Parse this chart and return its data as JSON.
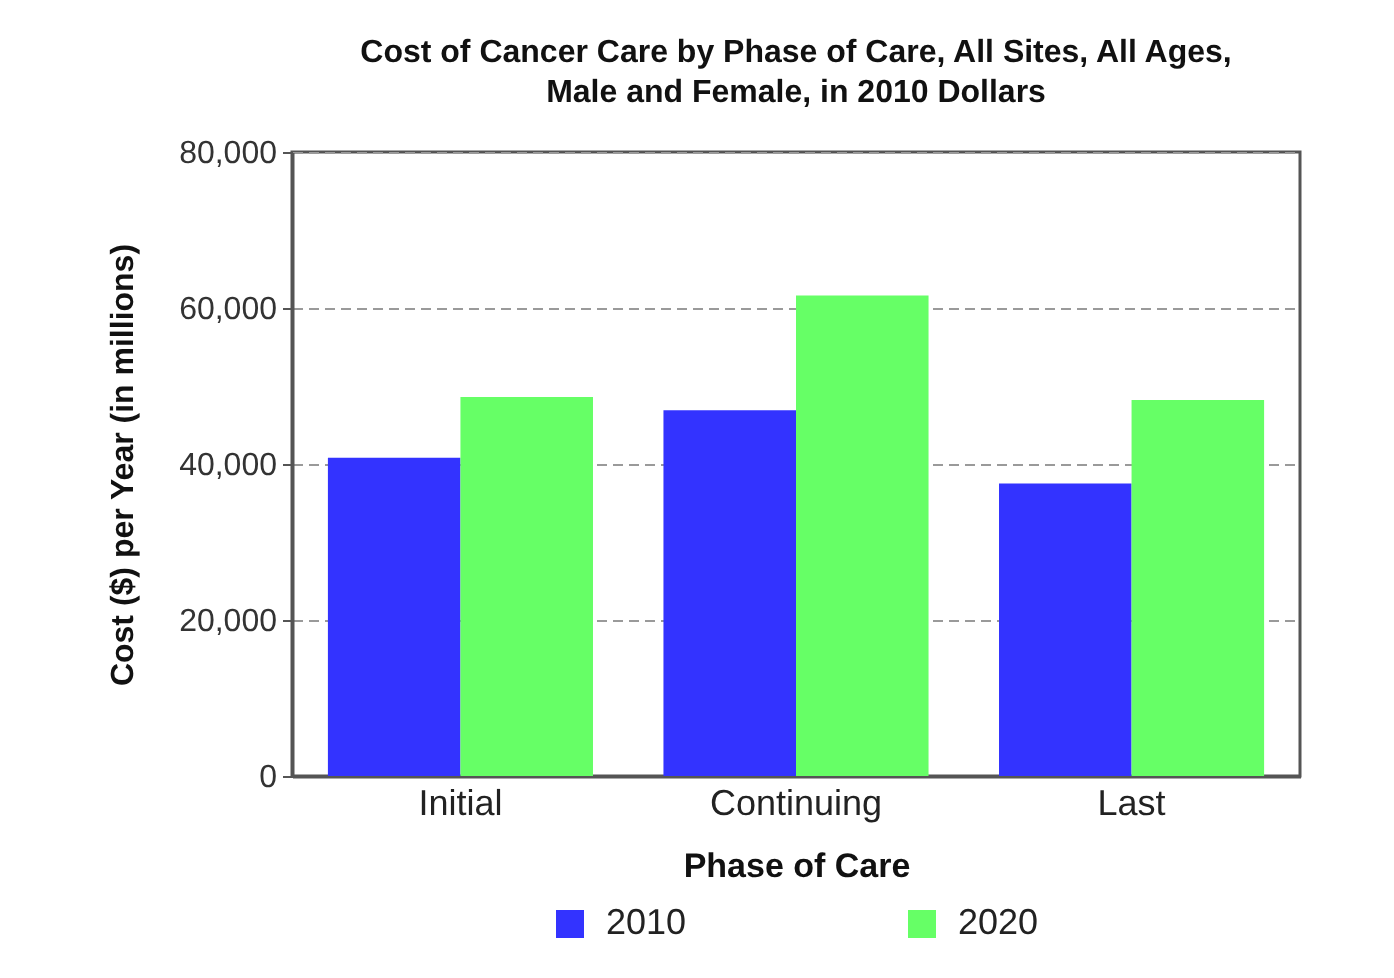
{
  "chart_data": {
    "type": "bar",
    "title": "Cost of Cancer Care by Phase of Care, All Sites, All Ages, Male and Female, in 2010 Dollars",
    "xlabel": "Phase of Care",
    "ylabel": "Cost ($) per Year (in millions)",
    "categories": [
      "Initial",
      "Continuing",
      "Last"
    ],
    "series": [
      {
        "name": "2010",
        "color": "#3333ff",
        "values": [
          40800,
          46900,
          37500
        ]
      },
      {
        "name": "2020",
        "color": "#66ff66",
        "values": [
          48600,
          61600,
          48200
        ]
      }
    ],
    "ylim": [
      0,
      80000
    ],
    "yticks": [
      0,
      {
        "value": 20000,
        "label": "20,000"
      },
      {
        "value": 40000,
        "label": "40,000"
      },
      {
        "value": 60000,
        "label": "60,000"
      },
      {
        "value": 80000,
        "label": "80,000"
      }
    ],
    "grid": "y",
    "legend": "bottom"
  }
}
